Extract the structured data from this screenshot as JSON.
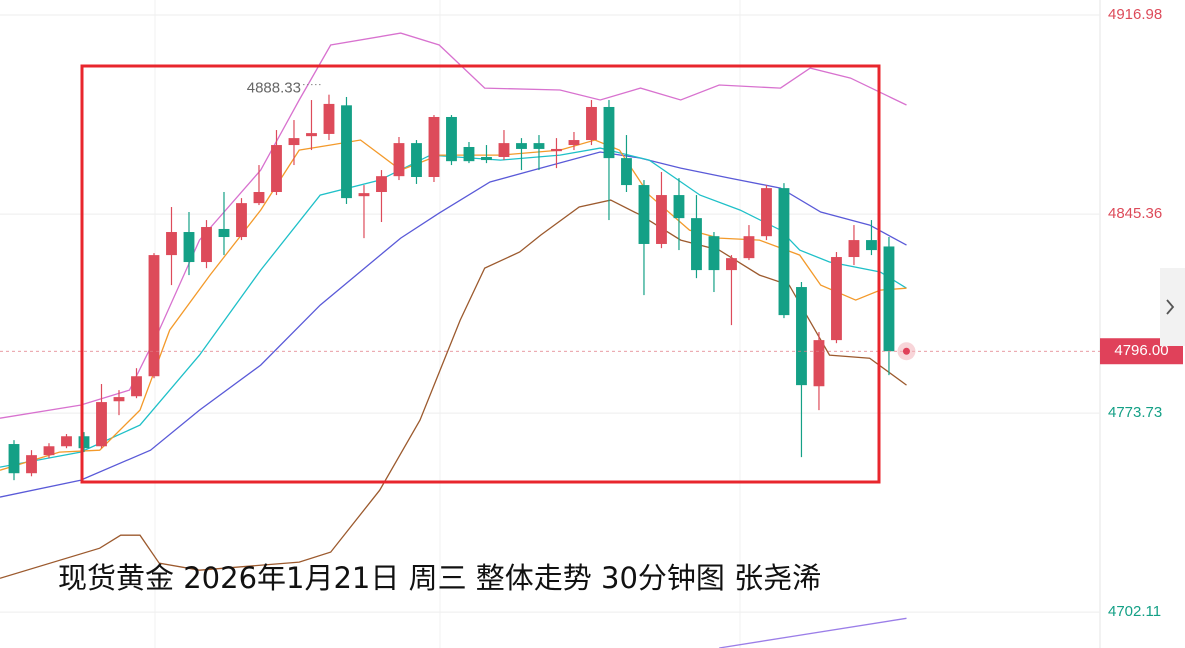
{
  "chart_data": {
    "type": "candlestick",
    "caption": "现货黄金 2026年1月21日 周三  整体走势  30分钟图 张尧浠",
    "ylim": [
      4689.2,
      4922.4
    ],
    "yticks": [
      4916.98,
      4845.36,
      4773.73,
      4702.11
    ],
    "xlim": [
      -0.8,
      62.06
    ],
    "grid": true,
    "up_color": "#dd4b5a",
    "down_color": "#14a086",
    "last_price": {
      "value": 4796,
      "label": "4796.00"
    },
    "high_label": 4888.33,
    "open": [
      4762.6,
      4752.1,
      4758.6,
      4761.8,
      4765.4,
      4761.8,
      4778.0,
      4779.8,
      4787.0,
      4830.6,
      4838.9,
      4828.1,
      4840.0,
      4837.1,
      4849.3,
      4853.3,
      4870.2,
      4873.4,
      4874.2,
      4884.5,
      4851.8,
      4853.3,
      4859.0,
      4870.9,
      4858.7,
      4880.3,
      4869.5,
      4865.9,
      4865.9,
      4870.9,
      4870.9,
      4868.0,
      4870.2,
      4872.0,
      4883.9,
      4865.5,
      4855.8,
      4834.6,
      4852.2,
      4843.9,
      4837.4,
      4825.2,
      4829.5,
      4837.4,
      4854.7,
      4819.1,
      4783.4,
      4800.0,
      4829.9,
      4836.0,
      4833.7
    ],
    "high": [
      4764.0,
      4760.4,
      4762.9,
      4766.2,
      4766.9,
      4784.2,
      4782.0,
      4789.9,
      4831.3,
      4847.9,
      4846.1,
      4843.2,
      4853.3,
      4851.1,
      4863.0,
      4875.6,
      4879.2,
      4886.4,
      4888.33,
      4887.5,
      4855.8,
      4861.2,
      4873.1,
      4872.0,
      4881.0,
      4881.0,
      4871.3,
      4870.2,
      4875.6,
      4872.7,
      4873.8,
      4872.7,
      4874.9,
      4886.4,
      4886.4,
      4873.8,
      4857.6,
      4860.5,
      4858.3,
      4852.2,
      4838.9,
      4830.6,
      4841.4,
      4855.8,
      4856.5,
      4820.9,
      4802.9,
      4831.7,
      4841.4,
      4843.2,
      4837.1
    ],
    "low": [
      4749.6,
      4751.0,
      4757.5,
      4761.1,
      4759.7,
      4761.1,
      4773.0,
      4779.1,
      4786.3,
      4819.8,
      4823.4,
      4825.9,
      4830.6,
      4836.0,
      4848.6,
      4852.2,
      4863.0,
      4868.4,
      4872.0,
      4849.0,
      4836.7,
      4842.5,
      4857.6,
      4856.2,
      4856.9,
      4863.0,
      4863.7,
      4863.7,
      4864.8,
      4861.2,
      4861.2,
      4861.9,
      4868.4,
      4870.2,
      4843.2,
      4853.3,
      4816.2,
      4833.1,
      4832.4,
      4822.3,
      4817.3,
      4805.4,
      4828.8,
      4836.0,
      4807.9,
      4757.9,
      4774.8,
      4798.9,
      4827.0,
      4830.6,
      4787.4
    ],
    "close": [
      4752.1,
      4758.6,
      4761.8,
      4765.4,
      4761.1,
      4777.7,
      4779.5,
      4787.0,
      4830.6,
      4838.9,
      4828.1,
      4840.7,
      4837.1,
      4849.3,
      4853.3,
      4870.2,
      4872.7,
      4874.5,
      4885.0,
      4851.1,
      4852.9,
      4859.0,
      4870.9,
      4858.7,
      4880.3,
      4864.4,
      4864.4,
      4864.8,
      4870.9,
      4868.8,
      4868.8,
      4868.8,
      4872.0,
      4883.9,
      4865.5,
      4855.8,
      4834.6,
      4852.2,
      4843.9,
      4825.2,
      4825.2,
      4829.5,
      4837.4,
      4854.7,
      4809.0,
      4783.8,
      4800.0,
      4829.9,
      4836.0,
      4832.4,
      4796
    ],
    "series": [
      {
        "color": "#d872cf",
        "x": [
          -0.8,
          3.8,
          6.6,
          8.3,
          10.6,
          14.1,
          16.3,
          18.1,
          22.1,
          24.3,
          26.9,
          31.2,
          33.5,
          35.8,
          38.1,
          40.3,
          43.8,
          45.5,
          47.8,
          51.0
        ],
        "values": [
          4771.9,
          4776.6,
          4782.0,
          4803.6,
          4836.0,
          4861.2,
          4886.4,
          4906.2,
          4910.5,
          4906.2,
          4890.7,
          4890.0,
          4886.4,
          4890.7,
          4886.4,
          4891.8,
          4890.7,
          4897.9,
          4894.3,
          4884.6
        ]
      },
      {
        "color": "#9c5a2e",
        "x": [
          -0.8,
          4.9,
          6.1,
          7.2,
          8.3,
          10.6,
          16.3,
          18.1,
          20.9,
          23.2,
          25.5,
          26.9,
          28.9,
          30.1,
          32.3,
          34.1,
          35.8,
          38.1,
          40.3,
          42.6,
          44.3,
          46.6,
          48.9,
          51.0
        ],
        "values": [
          4714.3,
          4725.1,
          4729.8,
          4729.8,
          4719.7,
          4717.2,
          4720.1,
          4723.7,
          4746.0,
          4771.2,
          4807.2,
          4825.9,
          4831.7,
          4837.8,
          4847.9,
          4850.4,
          4845.0,
          4836.0,
          4832.4,
          4823.4,
          4819.8,
          4794.6,
          4793.5,
          4783.8
        ]
      },
      {
        "color": "#5a5ad8",
        "x": [
          -0.8,
          3.8,
          7.8,
          10.6,
          14.1,
          17.5,
          22.1,
          24.3,
          27.2,
          30.1,
          33.5,
          35.8,
          38.1,
          40.9,
          43.8,
          46.1,
          48.9,
          51.0
        ],
        "values": [
          4743.5,
          4749.6,
          4760.4,
          4774.8,
          4791.0,
          4812.6,
          4836.7,
          4845.7,
          4856.9,
          4861.9,
          4867.7,
          4865.5,
          4861.9,
          4858.3,
          4854.7,
          4846.1,
          4841.4,
          4834.2
        ]
      },
      {
        "color": "#1fc0c8",
        "x": [
          -0.8,
          3.8,
          7.2,
          10.6,
          14.1,
          17.5,
          20.9,
          23.8,
          27.8,
          31.2,
          33.5,
          36.3,
          39.2,
          41.5,
          43.8,
          44.9,
          46.6,
          49.5,
          51.0
        ],
        "values": [
          4754.3,
          4759.7,
          4769.4,
          4794.6,
          4825.2,
          4852.2,
          4857.6,
          4866.6,
          4864.8,
          4866.6,
          4869.1,
          4864.8,
          4852.2,
          4846.8,
          4839.6,
          4832.4,
          4828.1,
          4824.5,
          4818.7
        ]
      },
      {
        "color": "#f39a2b",
        "x": [
          -0.8,
          2.6,
          4.9,
          7.2,
          8.9,
          11.2,
          14.1,
          16.3,
          18.1,
          19.8,
          22.1,
          24.3,
          27.8,
          31.2,
          33.2,
          34.6,
          36.3,
          38.6,
          40.3,
          42.6,
          44.9,
          46.1,
          48.1,
          49.5,
          51.0
        ],
        "values": [
          4753.2,
          4759.7,
          4760.4,
          4774.8,
          4803.6,
          4823.4,
          4846.8,
          4868.4,
          4870.2,
          4872.0,
          4861.2,
          4866.6,
          4866.6,
          4868.4,
          4872.0,
          4868.4,
          4852.2,
          4839.6,
          4836.7,
          4836.0,
          4830.6,
          4819.8,
          4814.4,
          4818.0,
          4818.7
        ]
      },
      {
        "color": "#9b7ee8",
        "x": [
          40.3,
          51.0
        ],
        "values": [
          4689.2,
          4699.9
        ]
      }
    ]
  }
}
